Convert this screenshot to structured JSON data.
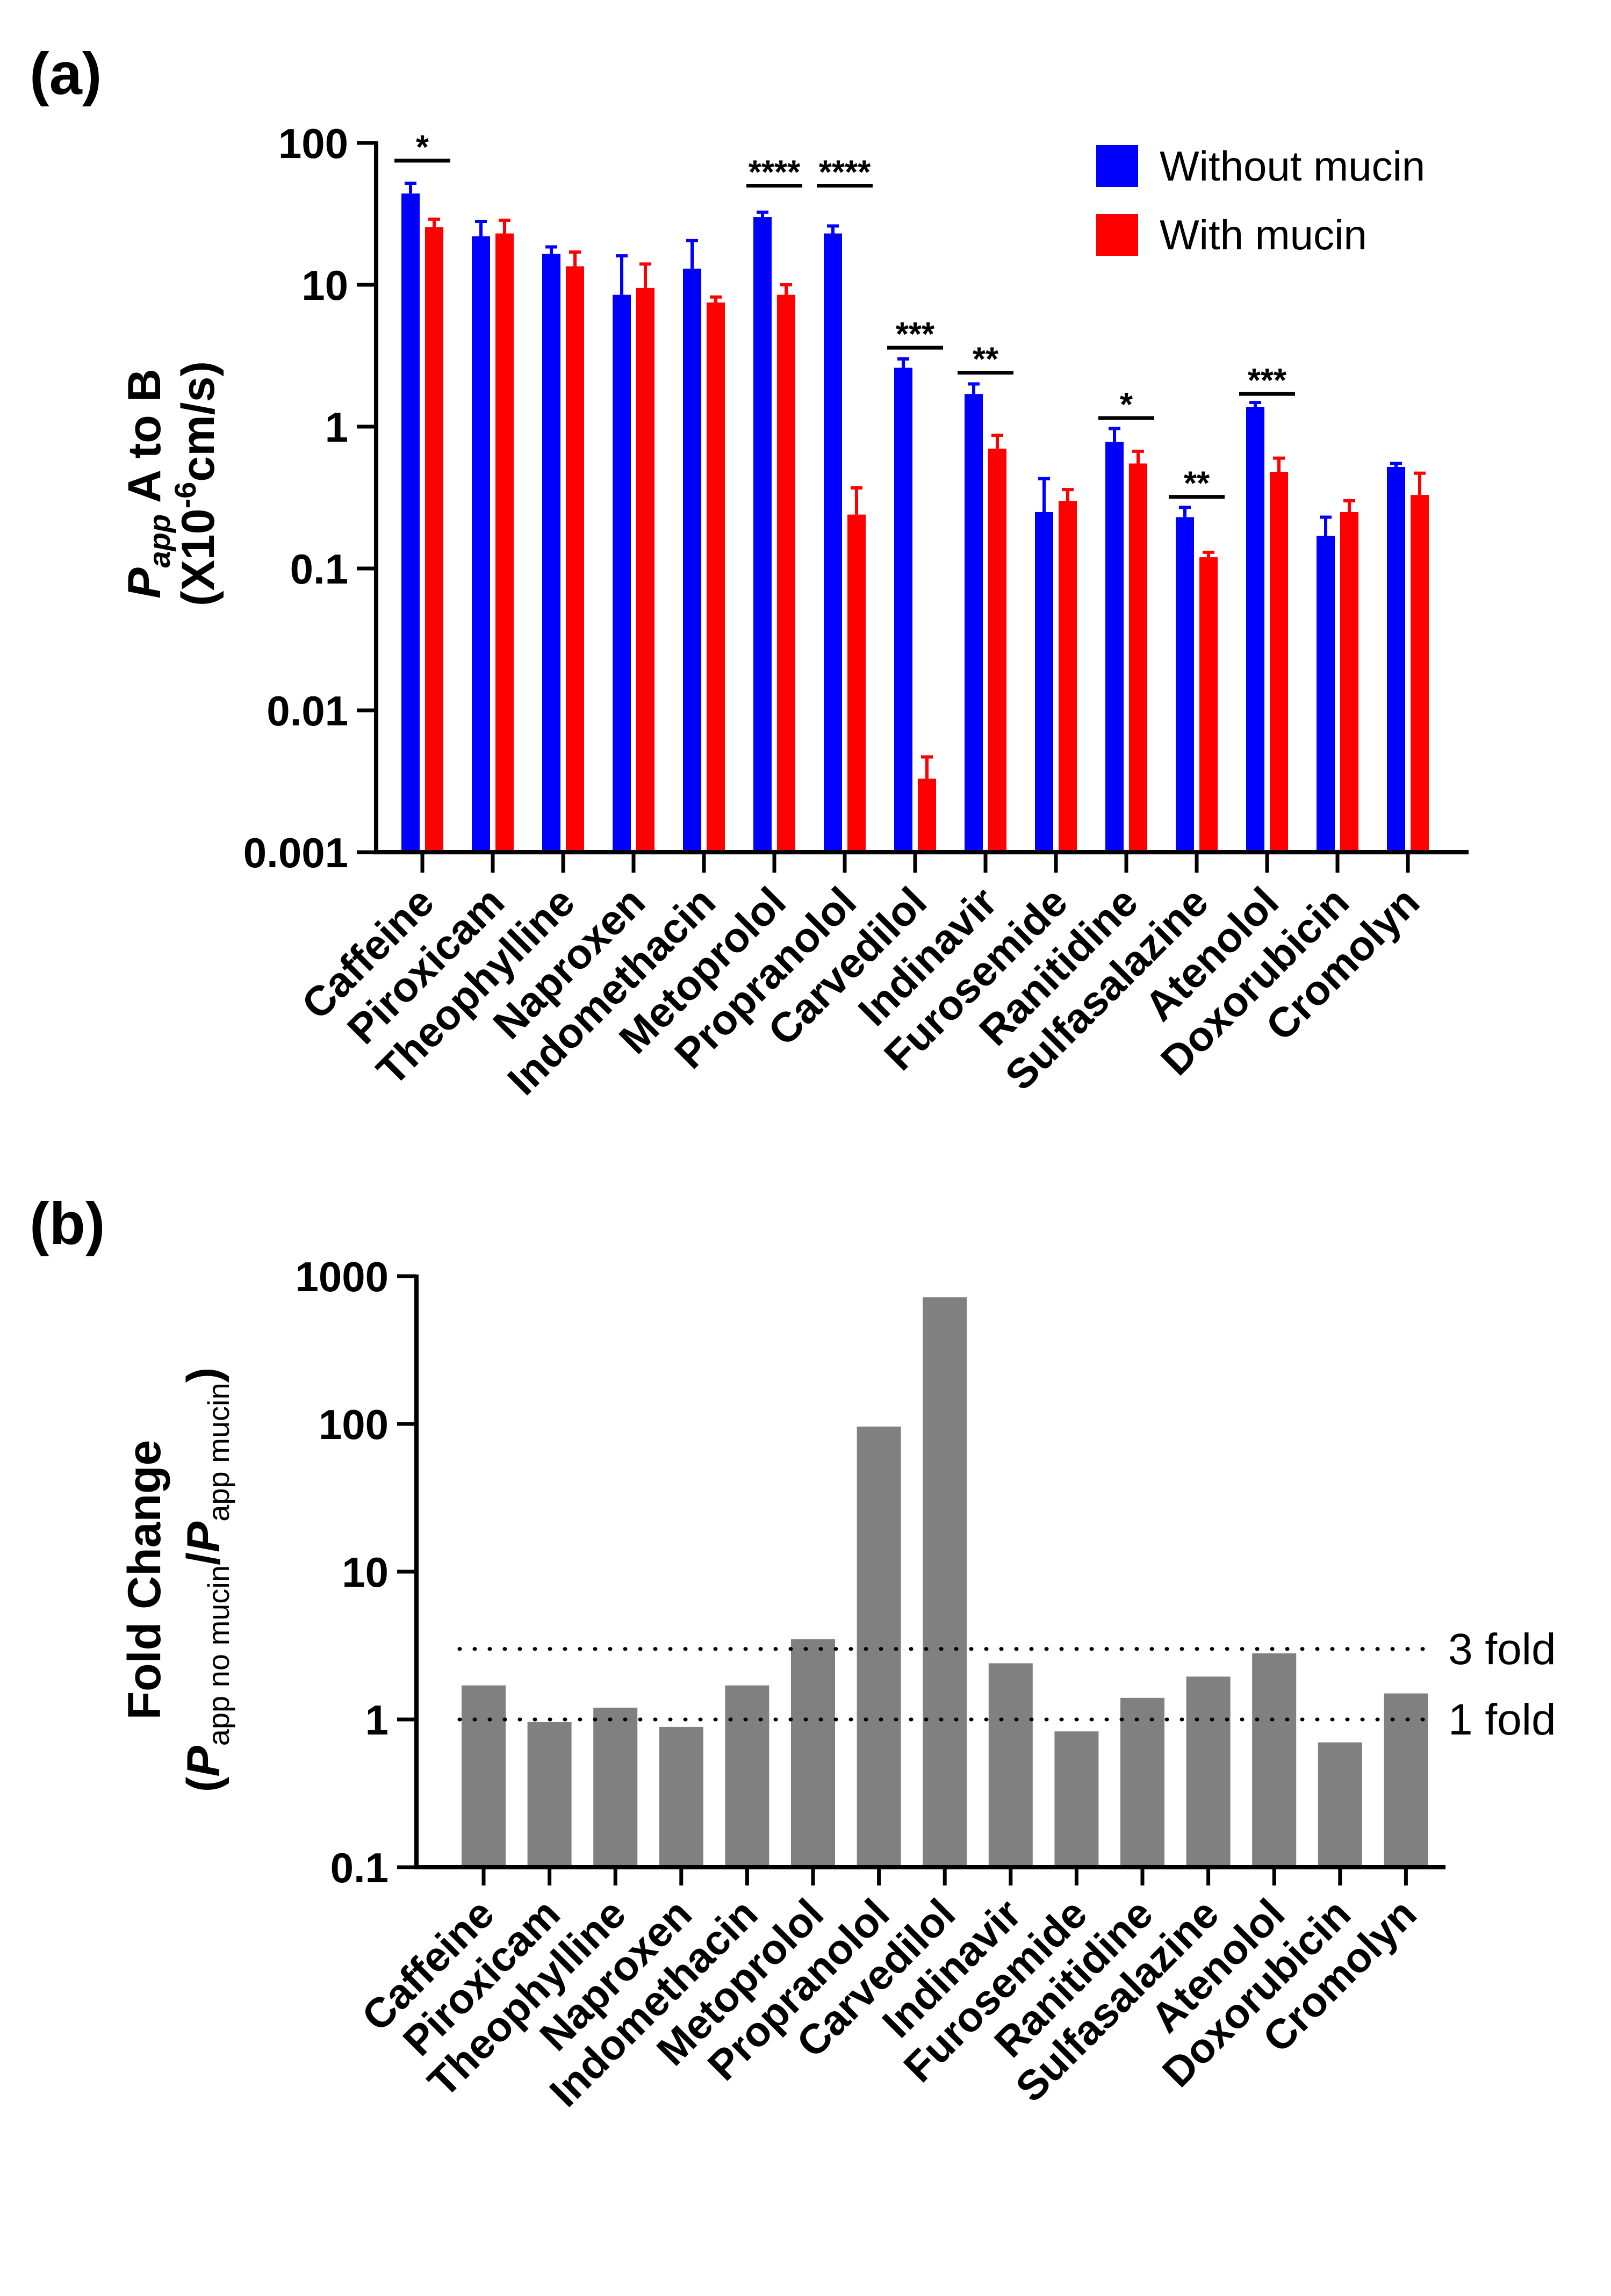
{
  "panel_a_label": "(a)",
  "panel_b_label": "(b)",
  "chart_data": [
    {
      "id": "a",
      "type": "bar",
      "yscale": "log",
      "ylim": [
        0.001,
        100
      ],
      "yticks": [
        "0.001",
        "0.01",
        "0.1",
        "1",
        "10",
        "100"
      ],
      "ylabel": {
        "line1_italic": "P",
        "line1_sub": "app",
        "line1_rest": " A to B",
        "line2_pre": "(X10",
        "line2_sup": "-6",
        "line2_post": "cm/s)"
      },
      "categories": [
        "Caffeine",
        "Piroxicam",
        "Theophylline",
        "Naproxen",
        "Indomethacin",
        "Metoprolol",
        "Propranolol",
        "Carvedilol",
        "Indinavir",
        "Furosemide",
        "Ranitidine",
        "Sulfasalazine",
        "Atenolol",
        "Doxorubicin",
        "Cromolyn"
      ],
      "series": [
        {
          "name": "Without mucin",
          "color": "#0000ff",
          "values": [
            44,
            22,
            16.5,
            8.5,
            13,
            30,
            23,
            2.6,
            1.7,
            0.25,
            0.78,
            0.23,
            1.38,
            0.17,
            0.52
          ],
          "errors_upper": [
            52,
            28,
            18.5,
            16,
            20.5,
            32.5,
            26,
            3.0,
            2.0,
            0.43,
            0.97,
            0.27,
            1.48,
            0.23,
            0.55
          ]
        },
        {
          "name": "With mucin",
          "color": "#ff0000",
          "values": [
            25.5,
            23,
            13.5,
            9.5,
            7.5,
            8.5,
            0.24,
            0.0033,
            0.7,
            0.3,
            0.55,
            0.12,
            0.48,
            0.25,
            0.33
          ],
          "errors_upper": [
            29,
            28.5,
            17,
            14,
            8.2,
            10,
            0.37,
            0.0047,
            0.87,
            0.36,
            0.67,
            0.13,
            0.6,
            0.3,
            0.47
          ]
        }
      ],
      "significance": [
        {
          "category": "Caffeine",
          "stars": "*",
          "level": 75
        },
        {
          "category": "Metoprolol",
          "stars": "****",
          "level": 50
        },
        {
          "category": "Propranolol",
          "stars": "****",
          "level": 50
        },
        {
          "category": "Carvedilol",
          "stars": "***",
          "level": 3.6
        },
        {
          "category": "Indinavir",
          "stars": "**",
          "level": 2.4
        },
        {
          "category": "Ranitidine",
          "stars": "*",
          "level": 1.15
        },
        {
          "category": "Sulfasalazine",
          "stars": "**",
          "level": 0.32
        },
        {
          "category": "Atenolol",
          "stars": "***",
          "level": 1.7
        }
      ],
      "legend_position": "top-right"
    },
    {
      "id": "b",
      "type": "bar",
      "yscale": "log",
      "ylim": [
        0.1,
        1000
      ],
      "yticks": [
        "0.1",
        "1",
        "10",
        "100",
        "1000"
      ],
      "ylabel": {
        "line1": "Fold Change",
        "line2_open": "(",
        "num_italic": "P",
        "num_sub": "app no mucin",
        "slash": "/",
        "den_italic": "P",
        "den_sub": "app mucin",
        "line2_close": ")"
      },
      "categories": [
        "Caffeine",
        "Piroxicam",
        "Theophylline",
        "Naproxen",
        "Indomethacin",
        "Metoprolol",
        "Propranolol",
        "Carvedilol",
        "Indinavir",
        "Furosemide",
        "Ranitidine",
        "Sulfasalazine",
        "Atenolol",
        "Doxorubicin",
        "Cromolyn"
      ],
      "series": [
        {
          "name": "Fold change",
          "color": "#808080",
          "values": [
            1.7,
            0.96,
            1.2,
            0.89,
            1.7,
            3.5,
            96,
            720,
            2.4,
            0.83,
            1.4,
            1.95,
            2.8,
            0.7,
            1.5
          ]
        }
      ],
      "reference_lines": [
        {
          "value": 3,
          "label": "3 fold"
        },
        {
          "value": 1,
          "label": "1 fold"
        }
      ]
    }
  ]
}
